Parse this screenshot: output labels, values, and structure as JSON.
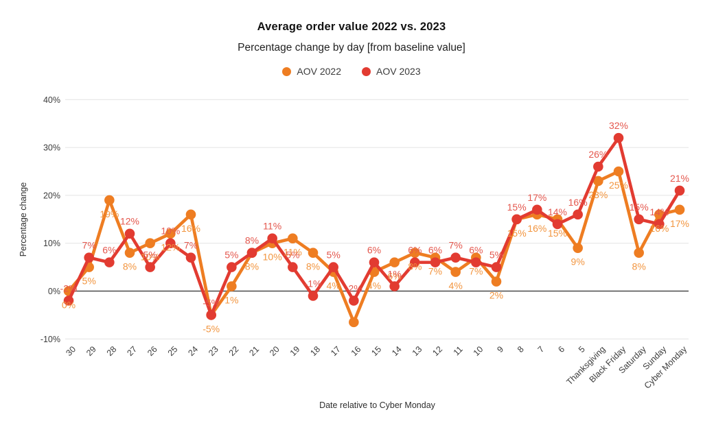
{
  "chart_data": {
    "type": "line",
    "title": "Average order value 2022 vs. 2023",
    "subtitle": "Percentage change by day [from baseline value]",
    "xlabel": "Date relative to Cyber Monday",
    "ylabel": "Percentage change",
    "ylim": [
      -10,
      40
    ],
    "yticks": [
      40,
      30,
      20,
      10,
      0,
      -10
    ],
    "grid": true,
    "legend_position": "top",
    "background_color": "#ffffff",
    "gridline_color": "#e3e3e3",
    "zero_line_color": "#4a4a4a",
    "axis_text_color": "#3c3c3c",
    "categories": [
      "30",
      "29",
      "28",
      "27",
      "26",
      "25",
      "24",
      "23",
      "22",
      "21",
      "20",
      "19",
      "18",
      "17",
      "16",
      "15",
      "14",
      "13",
      "12",
      "11",
      "10",
      "9",
      "8",
      "7",
      "6",
      "5",
      "Thanksgiving",
      "Black Friday",
      "Saturday",
      "Sunday",
      "Cyber Monday"
    ],
    "series": [
      {
        "name": "AOV 2022",
        "color": "#ee7d22",
        "label_color": "#f2953f",
        "values": [
          0,
          5,
          19,
          8,
          10,
          12,
          16,
          -5,
          1,
          8,
          10,
          11,
          8,
          4,
          -6.5,
          4,
          6,
          8,
          7,
          4,
          7,
          2,
          15,
          16,
          15,
          9,
          23,
          25,
          8,
          16,
          17
        ],
        "labels": [
          "0%",
          "5%",
          "19%",
          "8%",
          "10%",
          "12%",
          "16%",
          "-5%",
          "1%",
          "8%",
          "10%",
          "11%",
          "8%",
          "4%",
          "",
          "4%",
          "6%",
          "8%",
          "7%",
          "4%",
          "7%",
          "2%",
          "15%",
          "16%",
          "15%",
          "9%",
          "23%",
          "25%",
          "8%",
          "16%",
          "17%"
        ]
      },
      {
        "name": "AOV 2023",
        "color": "#e23b31",
        "label_color": "#e4574d",
        "values": [
          -2,
          7,
          6,
          12,
          5,
          10,
          7,
          -5,
          5,
          8,
          11,
          5,
          -1,
          5,
          -2,
          6,
          1,
          6,
          6,
          7,
          6,
          5,
          15,
          17,
          14,
          16,
          26,
          32,
          15,
          14,
          21
        ],
        "labels": [
          "-2%",
          "7%",
          "6%",
          "12%",
          "5%",
          "10%",
          "7%",
          "-5%",
          "5%",
          "8%",
          "11%",
          "5%",
          "-1%",
          "5%",
          "-2%",
          "6%",
          "1%",
          "6%",
          "6%",
          "7%",
          "6%",
          "5%",
          "15%",
          "17%",
          "14%",
          "16%",
          "26%",
          "32%",
          "15%",
          "14%",
          "21%"
        ]
      }
    ]
  }
}
